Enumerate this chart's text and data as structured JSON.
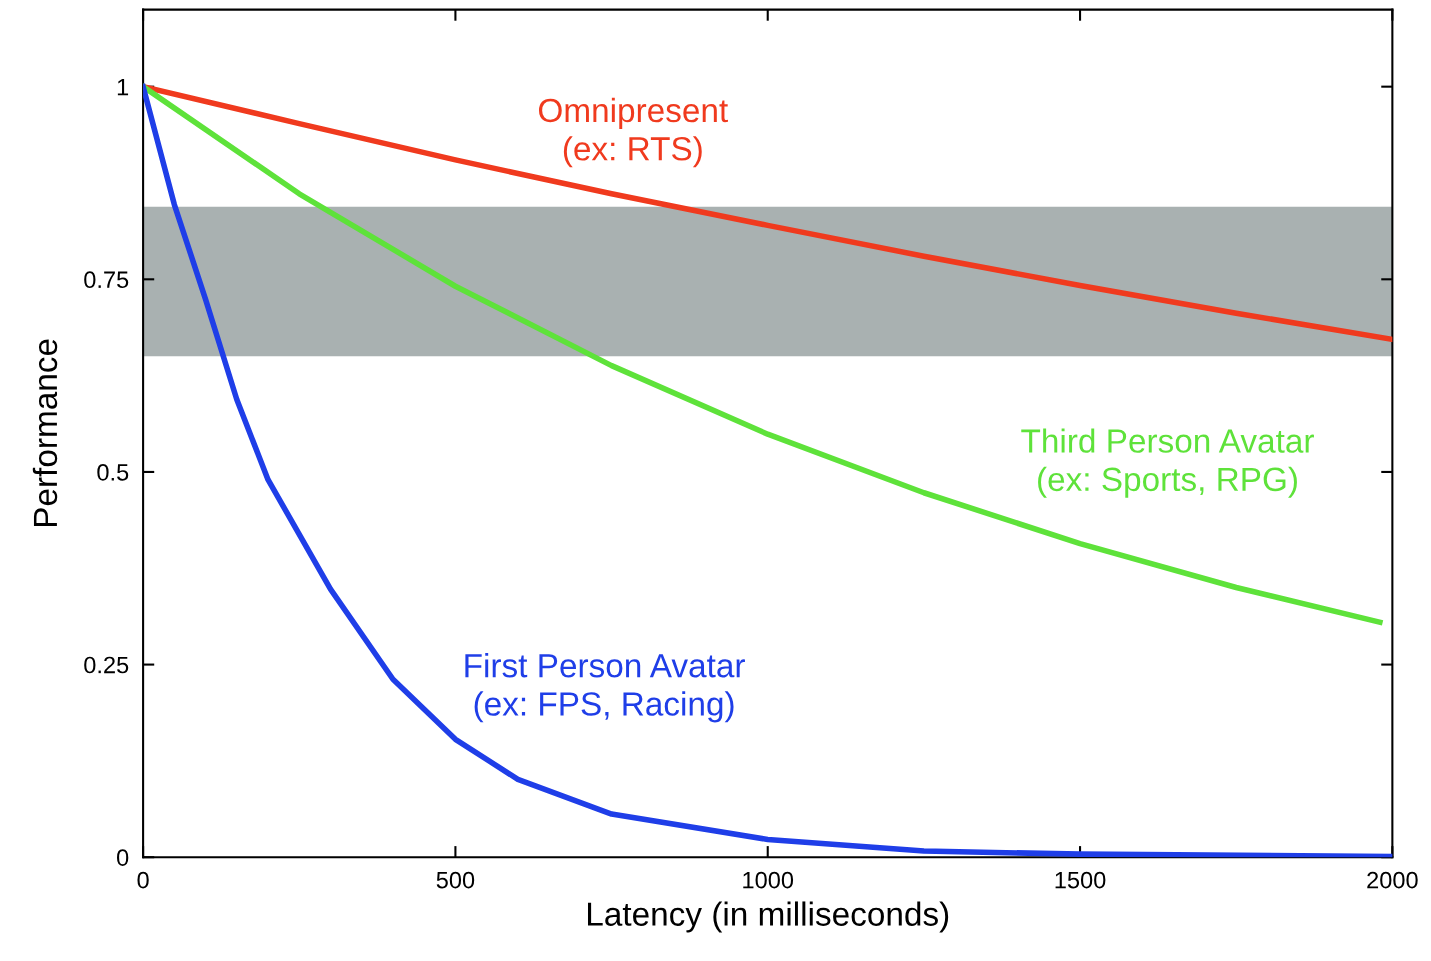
{
  "chart_data": {
    "type": "line",
    "xlabel": "Latency (in milliseconds)",
    "ylabel": "Performance",
    "xlim": [
      0,
      2000
    ],
    "xticks": [
      0,
      500,
      1000,
      1500,
      2000
    ],
    "ylim": [
      0,
      1.1
    ],
    "yticks": [
      0,
      0.25,
      0.5,
      0.75,
      1
    ],
    "grid": false,
    "legend": false,
    "bands": [
      {
        "axis": "y",
        "from": 0.65,
        "to": 0.844,
        "color": "#a9b1b1"
      }
    ],
    "series": [
      {
        "name": "Omnipresent\n(ex: RTS)",
        "color": "#f03a1e",
        "x": [
          0,
          250,
          500,
          750,
          1000,
          1250,
          1500,
          1750,
          2000
        ],
        "values": [
          1,
          0.952,
          0.905,
          0.861,
          0.82,
          0.78,
          0.742,
          0.706,
          0.672
        ]
      },
      {
        "name": "Third Person Avatar\n(ex: Sports, RPG)",
        "color": "#5ee23a",
        "x": [
          0,
          250,
          500,
          750,
          1000,
          1250,
          1500,
          1750,
          1980
        ],
        "values": [
          1,
          0.861,
          0.741,
          0.638,
          0.549,
          0.473,
          0.407,
          0.35,
          0.305
        ]
      },
      {
        "name": "First Person Avatar\n(ex: FPS, Racing)",
        "color": "#1f3ee8",
        "x": [
          0,
          50,
          100,
          150,
          200,
          300,
          400,
          500,
          600,
          750,
          1000,
          1250,
          1500,
          2000
        ],
        "values": [
          1,
          0.847,
          0.724,
          0.594,
          0.49,
          0.348,
          0.231,
          0.153,
          0.101,
          0.056,
          0.023,
          0.008,
          0.004,
          0.001
        ]
      }
    ]
  }
}
